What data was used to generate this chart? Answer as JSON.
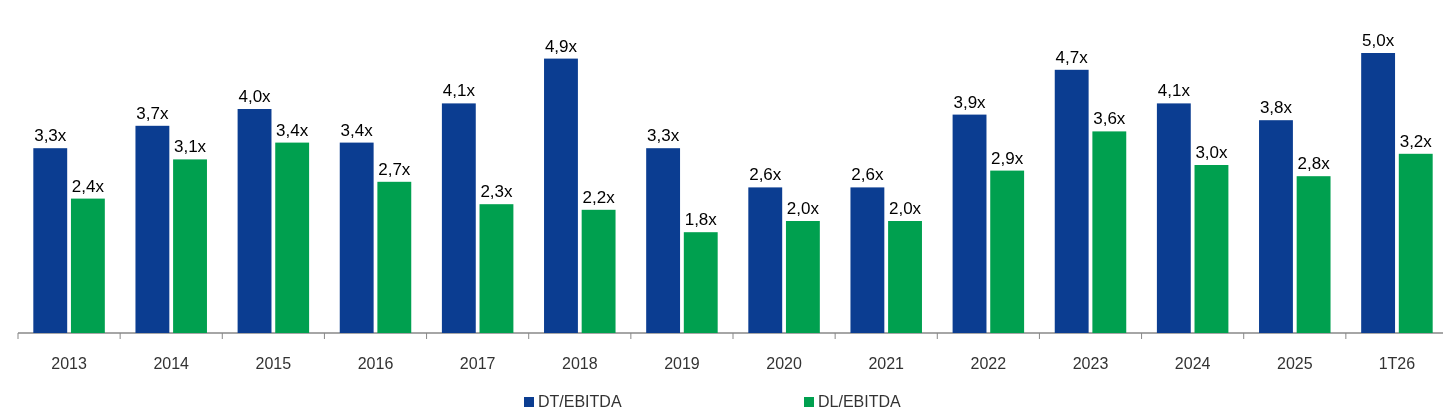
{
  "chart_data": {
    "type": "bar",
    "categories": [
      "2013",
      "2014",
      "2015",
      "2016",
      "2017",
      "2018",
      "2019",
      "2020",
      "2021",
      "2022",
      "2023",
      "2024",
      "2025",
      "1T26"
    ],
    "series": [
      {
        "name": "DT/EBITDA",
        "color": "#0b3d91",
        "values": [
          3.3,
          3.7,
          4.0,
          3.4,
          4.1,
          4.9,
          3.3,
          2.6,
          2.6,
          3.9,
          4.7,
          4.1,
          3.8,
          5.0
        ],
        "value_labels": [
          "3,3x",
          "3,7x",
          "4,0x",
          "3,4x",
          "4,1x",
          "4,9x",
          "3,3x",
          "2,6x",
          "2,6x",
          "3,9x",
          "4,7x",
          "4,1x",
          "3,8x",
          "5,0x"
        ]
      },
      {
        "name": "DL/EBITDA",
        "color": "#00a04f",
        "values": [
          2.4,
          3.1,
          3.4,
          2.7,
          2.3,
          2.2,
          1.8,
          2.0,
          2.0,
          2.9,
          3.6,
          3.0,
          2.8,
          3.2
        ],
        "value_labels": [
          "2,4x",
          "3,1x",
          "3,4x",
          "2,7x",
          "2,3x",
          "2,2x",
          "1,8x",
          "2,0x",
          "2,0x",
          "2,9x",
          "3,6x",
          "3,0x",
          "2,8x",
          "3,2x"
        ]
      }
    ],
    "legend": "bottom"
  }
}
